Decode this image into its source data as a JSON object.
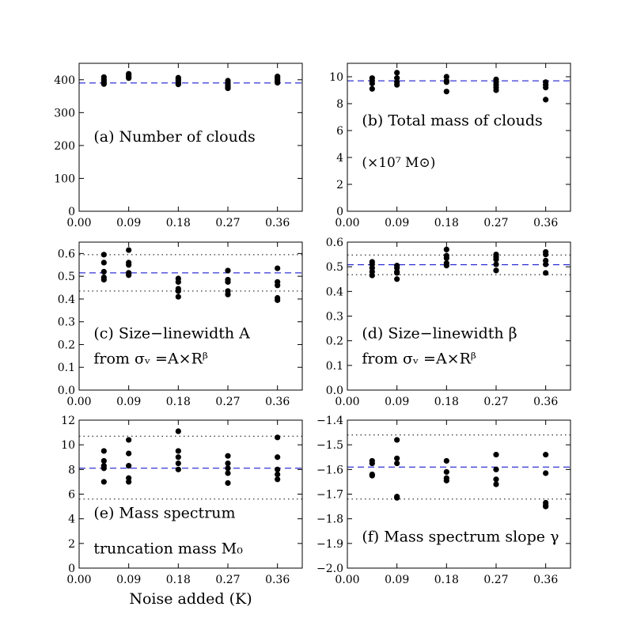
{
  "xlabel": "Noise added (K)",
  "colors": {
    "reference": "#0000cc",
    "points": "#000000",
    "band": "#000000"
  },
  "chart_data": [
    {
      "id": "a",
      "type": "scatter",
      "annotation": [
        "(a) Number of clouds"
      ],
      "xlim": [
        0.0,
        0.405
      ],
      "xticks": [
        0.0,
        0.09,
        0.18,
        0.27,
        0.36
      ],
      "xtick_labels": [
        "0.00",
        "0.09",
        "0.18",
        "0.27",
        "0.36"
      ],
      "ylim": [
        0,
        450
      ],
      "yticks": [
        0,
        100,
        200,
        300,
        400
      ],
      "ytick_labels": [
        "0",
        "100",
        "200",
        "300",
        "400"
      ],
      "reference": 390,
      "band": [],
      "points": [
        [
          0.045,
          408
        ],
        [
          0.045,
          401
        ],
        [
          0.045,
          395
        ],
        [
          0.045,
          390
        ],
        [
          0.045,
          387
        ],
        [
          0.09,
          418
        ],
        [
          0.09,
          413
        ],
        [
          0.09,
          409
        ],
        [
          0.09,
          405
        ],
        [
          0.18,
          406
        ],
        [
          0.18,
          401
        ],
        [
          0.18,
          396
        ],
        [
          0.18,
          390
        ],
        [
          0.18,
          386
        ],
        [
          0.27,
          397
        ],
        [
          0.27,
          390
        ],
        [
          0.27,
          383
        ],
        [
          0.27,
          377
        ],
        [
          0.27,
          374
        ],
        [
          0.36,
          410
        ],
        [
          0.36,
          405
        ],
        [
          0.36,
          400
        ],
        [
          0.36,
          395
        ],
        [
          0.36,
          391
        ]
      ]
    },
    {
      "id": "b",
      "type": "scatter",
      "annotation": [
        "(b) Total mass of clouds",
        "(×10⁷ M⊙)"
      ],
      "xlim": [
        0.0,
        0.405
      ],
      "xticks": [
        0.0,
        0.09,
        0.18,
        0.27,
        0.36
      ],
      "xtick_labels": [
        "0.00",
        "0.09",
        "0.18",
        "0.27",
        "0.36"
      ],
      "ylim": [
        0,
        11
      ],
      "yticks": [
        0,
        2,
        4,
        6,
        8,
        10
      ],
      "ytick_labels": [
        "0",
        "2",
        "4",
        "6",
        "8",
        "10"
      ],
      "reference": 9.7,
      "band": [],
      "points": [
        [
          0.045,
          9.9
        ],
        [
          0.045,
          9.7
        ],
        [
          0.045,
          9.5
        ],
        [
          0.045,
          9.1
        ],
        [
          0.09,
          10.3
        ],
        [
          0.09,
          9.9
        ],
        [
          0.09,
          9.6
        ],
        [
          0.09,
          9.4
        ],
        [
          0.18,
          10.0
        ],
        [
          0.18,
          9.7
        ],
        [
          0.18,
          9.6
        ],
        [
          0.18,
          8.9
        ],
        [
          0.27,
          9.8
        ],
        [
          0.27,
          9.6
        ],
        [
          0.27,
          9.4
        ],
        [
          0.27,
          9.2
        ],
        [
          0.27,
          9.0
        ],
        [
          0.36,
          9.6
        ],
        [
          0.36,
          9.4
        ],
        [
          0.36,
          9.2
        ],
        [
          0.36,
          8.3
        ]
      ]
    },
    {
      "id": "c",
      "type": "scatter",
      "annotation": [
        "(c) Size−linewidth A",
        "from σᵥ =A×Rᵝ"
      ],
      "xlim": [
        0.0,
        0.405
      ],
      "xticks": [
        0.0,
        0.09,
        0.18,
        0.27,
        0.36
      ],
      "xtick_labels": [
        "0.00",
        "0.09",
        "0.18",
        "0.27",
        "0.36"
      ],
      "ylim": [
        0.0,
        0.65
      ],
      "yticks": [
        0.0,
        0.1,
        0.2,
        0.3,
        0.4,
        0.5,
        0.6
      ],
      "ytick_labels": [
        "0.0",
        "0.1",
        "0.2",
        "0.3",
        "0.4",
        "0.5",
        "0.6"
      ],
      "reference": 0.515,
      "band": [
        0.435,
        0.595
      ],
      "points": [
        [
          0.045,
          0.595
        ],
        [
          0.045,
          0.56
        ],
        [
          0.045,
          0.52
        ],
        [
          0.045,
          0.495
        ],
        [
          0.045,
          0.485
        ],
        [
          0.09,
          0.615
        ],
        [
          0.09,
          0.56
        ],
        [
          0.09,
          0.55
        ],
        [
          0.09,
          0.515
        ],
        [
          0.09,
          0.505
        ],
        [
          0.18,
          0.49
        ],
        [
          0.18,
          0.475
        ],
        [
          0.18,
          0.445
        ],
        [
          0.18,
          0.435
        ],
        [
          0.18,
          0.41
        ],
        [
          0.27,
          0.525
        ],
        [
          0.27,
          0.485
        ],
        [
          0.27,
          0.475
        ],
        [
          0.27,
          0.435
        ],
        [
          0.27,
          0.42
        ],
        [
          0.36,
          0.535
        ],
        [
          0.36,
          0.475
        ],
        [
          0.36,
          0.46
        ],
        [
          0.36,
          0.405
        ],
        [
          0.36,
          0.395
        ]
      ]
    },
    {
      "id": "d",
      "type": "scatter",
      "annotation": [
        "(d) Size−linewidth β",
        "from σᵥ =A×Rᵝ"
      ],
      "xlim": [
        0.0,
        0.405
      ],
      "xticks": [
        0.0,
        0.09,
        0.18,
        0.27,
        0.36
      ],
      "xtick_labels": [
        "0.00",
        "0.09",
        "0.18",
        "0.27",
        "0.36"
      ],
      "ylim": [
        0.0,
        0.6
      ],
      "yticks": [
        0.0,
        0.1,
        0.2,
        0.3,
        0.4,
        0.5,
        0.6
      ],
      "ytick_labels": [
        "0.0",
        "0.1",
        "0.2",
        "0.3",
        "0.4",
        "0.5",
        "0.6"
      ],
      "reference": 0.508,
      "band": [
        0.468,
        0.548
      ],
      "points": [
        [
          0.045,
          0.52
        ],
        [
          0.045,
          0.51
        ],
        [
          0.045,
          0.495
        ],
        [
          0.045,
          0.48
        ],
        [
          0.045,
          0.465
        ],
        [
          0.09,
          0.505
        ],
        [
          0.09,
          0.495
        ],
        [
          0.09,
          0.48
        ],
        [
          0.09,
          0.475
        ],
        [
          0.09,
          0.45
        ],
        [
          0.18,
          0.57
        ],
        [
          0.18,
          0.545
        ],
        [
          0.18,
          0.535
        ],
        [
          0.18,
          0.515
        ],
        [
          0.18,
          0.505
        ],
        [
          0.27,
          0.55
        ],
        [
          0.27,
          0.54
        ],
        [
          0.27,
          0.53
        ],
        [
          0.27,
          0.51
        ],
        [
          0.27,
          0.485
        ],
        [
          0.36,
          0.56
        ],
        [
          0.36,
          0.55
        ],
        [
          0.36,
          0.525
        ],
        [
          0.36,
          0.51
        ],
        [
          0.36,
          0.475
        ]
      ]
    },
    {
      "id": "e",
      "type": "scatter",
      "annotation": [
        "(e) Mass spectrum",
        "truncation mass M₀"
      ],
      "xlim": [
        0.0,
        0.405
      ],
      "xticks": [
        0.0,
        0.09,
        0.18,
        0.27,
        0.36
      ],
      "xtick_labels": [
        "0.00",
        "0.09",
        "0.18",
        "0.27",
        "0.36"
      ],
      "ylim": [
        0,
        12
      ],
      "yticks": [
        0,
        2,
        4,
        6,
        8,
        10,
        12
      ],
      "ytick_labels": [
        "0",
        "2",
        "4",
        "6",
        "8",
        "10",
        "12"
      ],
      "reference": 8.1,
      "band": [
        5.6,
        10.7
      ],
      "points": [
        [
          0.045,
          9.5
        ],
        [
          0.045,
          8.7
        ],
        [
          0.045,
          8.3
        ],
        [
          0.045,
          8.1
        ],
        [
          0.045,
          7.0
        ],
        [
          0.09,
          10.4
        ],
        [
          0.09,
          9.3
        ],
        [
          0.09,
          8.3
        ],
        [
          0.09,
          7.3
        ],
        [
          0.09,
          7.0
        ],
        [
          0.18,
          11.1
        ],
        [
          0.18,
          9.5
        ],
        [
          0.18,
          9.0
        ],
        [
          0.18,
          8.5
        ],
        [
          0.18,
          8.0
        ],
        [
          0.27,
          9.1
        ],
        [
          0.27,
          8.5
        ],
        [
          0.27,
          8.1
        ],
        [
          0.27,
          7.7
        ],
        [
          0.27,
          6.9
        ],
        [
          0.36,
          10.6
        ],
        [
          0.36,
          9.0
        ],
        [
          0.36,
          8.0
        ],
        [
          0.36,
          7.6
        ],
        [
          0.36,
          7.2
        ]
      ]
    },
    {
      "id": "f",
      "type": "scatter",
      "annotation": [
        "(f) Mass spectrum slope γ"
      ],
      "xlim": [
        0.0,
        0.405
      ],
      "xticks": [
        0.0,
        0.09,
        0.18,
        0.27,
        0.36
      ],
      "xtick_labels": [
        "0.00",
        "0.09",
        "0.18",
        "0.27",
        "0.36"
      ],
      "ylim": [
        -2.0,
        -1.4
      ],
      "yticks": [
        -2.0,
        -1.9,
        -1.8,
        -1.7,
        -1.6,
        -1.5,
        -1.4
      ],
      "ytick_labels": [
        "−2.0",
        "−1.9",
        "−1.8",
        "−1.7",
        "−1.6",
        "−1.5",
        "−1.4"
      ],
      "reference": -1.59,
      "band": [
        -1.72,
        -1.46
      ],
      "points": [
        [
          0.045,
          -1.565
        ],
        [
          0.045,
          -1.575
        ],
        [
          0.045,
          -1.62
        ],
        [
          0.045,
          -1.625
        ],
        [
          0.09,
          -1.48
        ],
        [
          0.09,
          -1.555
        ],
        [
          0.09,
          -1.575
        ],
        [
          0.09,
          -1.71
        ],
        [
          0.09,
          -1.715
        ],
        [
          0.18,
          -1.565
        ],
        [
          0.18,
          -1.61
        ],
        [
          0.18,
          -1.635
        ],
        [
          0.18,
          -1.645
        ],
        [
          0.27,
          -1.54
        ],
        [
          0.27,
          -1.6
        ],
        [
          0.27,
          -1.64
        ],
        [
          0.27,
          -1.66
        ],
        [
          0.36,
          -1.54
        ],
        [
          0.36,
          -1.615
        ],
        [
          0.36,
          -1.735
        ],
        [
          0.36,
          -1.745
        ],
        [
          0.36,
          -1.75
        ]
      ]
    }
  ]
}
